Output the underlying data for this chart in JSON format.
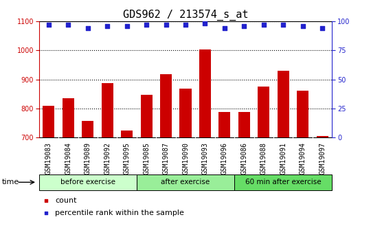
{
  "title": "GDS962 / 213574_s_at",
  "categories": [
    "GSM19083",
    "GSM19084",
    "GSM19089",
    "GSM19092",
    "GSM19095",
    "GSM19085",
    "GSM19087",
    "GSM19090",
    "GSM19093",
    "GSM19096",
    "GSM19086",
    "GSM19088",
    "GSM19091",
    "GSM19094",
    "GSM19097"
  ],
  "counts": [
    808,
    835,
    757,
    888,
    724,
    848,
    918,
    868,
    1003,
    787,
    787,
    875,
    930,
    862,
    706
  ],
  "percentiles": [
    97,
    97,
    94,
    96,
    96,
    97,
    97,
    97,
    98,
    94,
    96,
    97,
    97,
    96,
    94
  ],
  "bar_color": "#cc0000",
  "dot_color": "#2222cc",
  "ylim_left": [
    700,
    1100
  ],
  "ylim_right": [
    0,
    100
  ],
  "yticks_left": [
    700,
    800,
    900,
    1000,
    1100
  ],
  "yticks_right": [
    0,
    25,
    50,
    75,
    100
  ],
  "groups": [
    {
      "label": "before exercise",
      "start": 0,
      "end": 5,
      "color": "#ccffcc"
    },
    {
      "label": "after exercise",
      "start": 5,
      "end": 10,
      "color": "#99ee99"
    },
    {
      "label": "60 min after exercise",
      "start": 10,
      "end": 15,
      "color": "#66dd66"
    }
  ],
  "plot_bg": "#ffffff",
  "xtick_bg": "#d0d0d0",
  "grid_color": "#000000",
  "xlabel_time": "time",
  "legend_count": "count",
  "legend_percentile": "percentile rank within the sample",
  "title_fontsize": 11,
  "tick_fontsize": 7,
  "bar_width": 0.6
}
